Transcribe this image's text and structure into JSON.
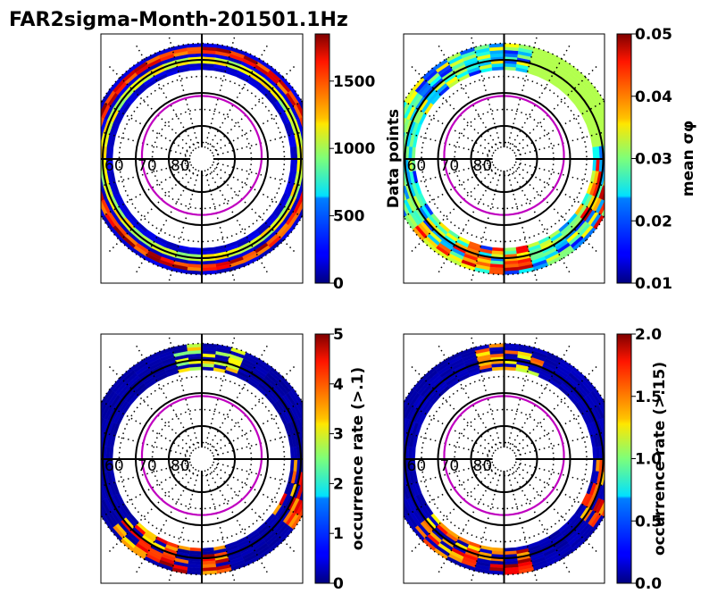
{
  "figure_title": "FAR2sigma-Month-201501.1Hz",
  "colormap": "jet",
  "colors": {
    "mlt_contour": "#c000c0",
    "grid": "#000000"
  },
  "chart_data": [
    {
      "type": "heatmap",
      "projection": "polar-dial",
      "panel": "top-left",
      "colorbar": {
        "label": "Data points",
        "label_side": "right",
        "range": [
          0,
          1850
        ],
        "ticks": [
          0,
          500,
          1000,
          1500
        ],
        "tick_labels": [
          "0",
          "500",
          "1000",
          "1500"
        ]
      },
      "lat_labels": [
        "60",
        "70",
        "80"
      ],
      "ring": {
        "inner_lat": 63,
        "outer_lat": 55,
        "typical_value": 150,
        "high_value_bands": [
          {
            "lat": 57,
            "value": 1600
          },
          {
            "lat": 60,
            "value": 1100
          }
        ]
      }
    },
    {
      "type": "heatmap",
      "projection": "polar-dial",
      "panel": "top-right",
      "colorbar": {
        "label": "mean σφ",
        "label_side": "right",
        "range": [
          0.01,
          0.05
        ],
        "ticks": [
          0.01,
          0.02,
          0.03,
          0.04,
          0.05
        ],
        "tick_labels": [
          "0.01",
          "0.02",
          "0.03",
          "0.04",
          "0.05"
        ]
      },
      "lat_labels": [
        "60",
        "70",
        "80"
      ],
      "ring": {
        "inner_lat": 63,
        "outer_lat": 55,
        "typical_value": 0.026,
        "hot_spots": [
          {
            "mlt": 19,
            "value": 0.05
          },
          {
            "mlt": 0,
            "value": 0.048
          },
          {
            "mlt": 2,
            "value": 0.046
          }
        ]
      }
    },
    {
      "type": "heatmap",
      "projection": "polar-dial",
      "panel": "bottom-left",
      "colorbar": {
        "label": "occurrence rate (>.1)",
        "label_side": "right",
        "range": [
          0,
          5
        ],
        "ticks": [
          0,
          1,
          2,
          3,
          4,
          5
        ],
        "tick_labels": [
          "0",
          "1",
          "2",
          "3",
          "4",
          "5"
        ]
      },
      "lat_labels": [
        "60",
        "70",
        "80"
      ],
      "ring": {
        "inner_lat": 63,
        "outer_lat": 55,
        "typical_value": 0.2,
        "hot_spots": [
          {
            "mlt": 19,
            "value": 4.8
          },
          {
            "mlt": 0,
            "value": 5
          },
          {
            "mlt": 2,
            "value": 4.5
          },
          {
            "mlt": 12,
            "value": 3.5
          }
        ]
      }
    },
    {
      "type": "heatmap",
      "projection": "polar-dial",
      "panel": "bottom-right",
      "colorbar": {
        "label": "occurrence rate (>.15)",
        "label_side": "right",
        "range": [
          0,
          2
        ],
        "ticks": [
          0,
          0.5,
          1,
          1.5,
          2
        ],
        "tick_labels": [
          "0.0",
          "0.5",
          "1.0",
          "1.5",
          "2.0"
        ]
      },
      "lat_labels": [
        "60",
        "70",
        "80"
      ],
      "ring": {
        "inner_lat": 63,
        "outer_lat": 55,
        "typical_value": 0.1,
        "hot_spots": [
          {
            "mlt": 19,
            "value": 1.9
          },
          {
            "mlt": 0,
            "value": 2
          },
          {
            "mlt": 2,
            "value": 1.8
          },
          {
            "mlt": 12,
            "value": 1.6
          }
        ]
      }
    }
  ]
}
